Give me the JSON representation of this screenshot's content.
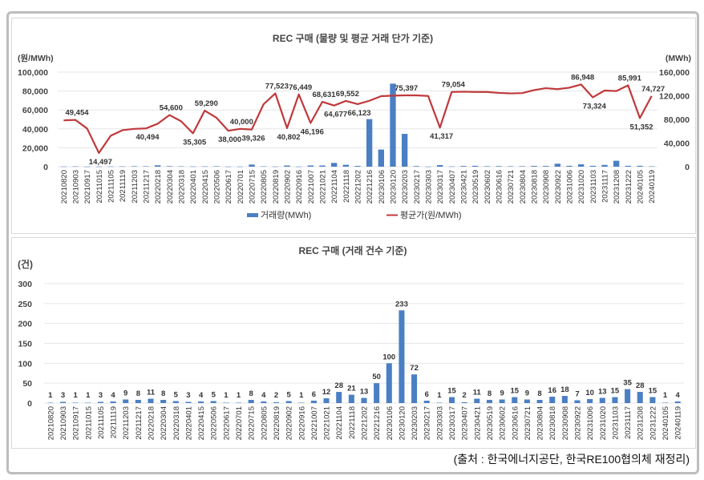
{
  "source_note": "(출처 : 한국에너지공단, 한국RE100협의체 재정리)",
  "colors": {
    "bar": "#4a7fc4",
    "line": "#c0393b",
    "grid": "#e6e6e6",
    "text": "#444444"
  },
  "chart_data": [
    {
      "type": "bar+line",
      "title": "REC 구매 (물량 및 평균 거래 단가 기준)",
      "ylabel_left": "(원/MWh)",
      "ylabel_right": "(MWh)",
      "ylim_left": [
        0,
        100000
      ],
      "ylim_right": [
        0,
        160000
      ],
      "yticks_left": [
        "0",
        "20,000",
        "40,000",
        "60,000",
        "80,000",
        "100,000"
      ],
      "yticks_right": [
        "0",
        "40,000",
        "80,000",
        "120,000",
        "160,000"
      ],
      "grid": true,
      "legend_position": "bottom",
      "categories": [
        "20210820",
        "20210903",
        "20210917",
        "20211015",
        "20211105",
        "20211119",
        "20211203",
        "20211217",
        "20220218",
        "20220304",
        "20220318",
        "20220401",
        "20220415",
        "20220506",
        "20220617",
        "20220701",
        "20220715",
        "20220805",
        "20220819",
        "20220902",
        "20220916",
        "20221007",
        "20221021",
        "20221104",
        "20221118",
        "20221202",
        "20221216",
        "20230106",
        "20230120",
        "20230203",
        "20230217",
        "20230303",
        "20230317",
        "20230407",
        "20230421",
        "20230519",
        "20230602",
        "20230616",
        "20230721",
        "20230804",
        "20230818",
        "20230908",
        "20230922",
        "20231006",
        "20231020",
        "20231103",
        "20231117",
        "20231208",
        "20231222",
        "20240105",
        "20240119"
      ],
      "series": [
        {
          "name": "거래량(MWh)",
          "type": "bar",
          "axis": "right",
          "values": [
            300,
            500,
            200,
            200,
            400,
            500,
            800,
            700,
            2300,
            900,
            600,
            400,
            500,
            700,
            200,
            200,
            3600,
            600,
            300,
            2000,
            200,
            2000,
            2000,
            6400,
            3200,
            1300,
            80500,
            29000,
            140500,
            55500,
            1000,
            200,
            2700,
            400,
            1200,
            1500,
            800,
            1000,
            700,
            800,
            1300,
            1200,
            5000,
            1500,
            4000,
            1500,
            3000,
            10000,
            1500,
            1500,
            600
          ]
        },
        {
          "name": "평균가(원/MWh)",
          "type": "line",
          "axis": "left",
          "values": [
            49000,
            49454,
            40300,
            14497,
            32600,
            38600,
            40000,
            40494,
            45400,
            54600,
            48000,
            35305,
            59290,
            51700,
            38000,
            40000,
            39326,
            66000,
            77523,
            40802,
            76449,
            46196,
            68631,
            64677,
            69552,
            66123,
            69700,
            74600,
            75100,
            75397,
            75400,
            74800,
            41317,
            79054,
            79300,
            79000,
            79000,
            78000,
            77500,
            77800,
            81000,
            83000,
            82000,
            83500,
            86948,
            73324,
            80500,
            80000,
            85991,
            51352,
            74727
          ],
          "data_labels": [
            null,
            "49,454",
            null,
            "14,497",
            null,
            null,
            null,
            "40,494",
            null,
            "54,600",
            null,
            "35,305",
            "59,290",
            null,
            "38,000",
            "40,000",
            "39,326",
            null,
            "77,523",
            "40,802",
            "76,449",
            "46,196",
            "68,631",
            "64,677",
            "69,552",
            "66,123",
            null,
            null,
            null,
            "75,397",
            null,
            null,
            "41,317",
            "79,054",
            null,
            null,
            null,
            null,
            null,
            null,
            null,
            null,
            null,
            null,
            "86,948",
            "73,324",
            null,
            null,
            "85,991",
            "51,352",
            "74,727"
          ]
        }
      ]
    },
    {
      "type": "bar",
      "title": "REC 구매 (거래 건수 기준)",
      "ylabel": "(건)",
      "ylim": [
        0,
        300
      ],
      "yticks": [
        "0",
        "50",
        "100",
        "150",
        "200",
        "250",
        "300"
      ],
      "grid": true,
      "categories": [
        "20210820",
        "20210903",
        "20210917",
        "20211015",
        "20211105",
        "20211119",
        "20211203",
        "20211217",
        "20220218",
        "20220304",
        "20220318",
        "20220401",
        "20220415",
        "20220506",
        "20220617",
        "20220701",
        "20220715",
        "20220805",
        "20220819",
        "20220902",
        "20220916",
        "20221007",
        "20221021",
        "20221104",
        "20221118",
        "20221202",
        "20221216",
        "20230106",
        "20230120",
        "20230203",
        "20230217",
        "20230303",
        "20230317",
        "20230407",
        "20230421",
        "20230519",
        "20230602",
        "20230616",
        "20230721",
        "20230804",
        "20230818",
        "20230908",
        "20230922",
        "20231006",
        "20231020",
        "20231103",
        "20231117",
        "20231208",
        "20231222",
        "20240105",
        "20240119"
      ],
      "values": [
        1,
        3,
        1,
        1,
        3,
        4,
        9,
        8,
        11,
        8,
        5,
        3,
        4,
        5,
        1,
        1,
        8,
        4,
        2,
        5,
        1,
        6,
        12,
        28,
        21,
        13,
        50,
        100,
        233,
        72,
        6,
        1,
        15,
        2,
        11,
        8,
        9,
        15,
        9,
        8,
        16,
        18,
        7,
        10,
        13,
        15,
        35,
        28,
        15,
        1,
        4
      ]
    }
  ]
}
